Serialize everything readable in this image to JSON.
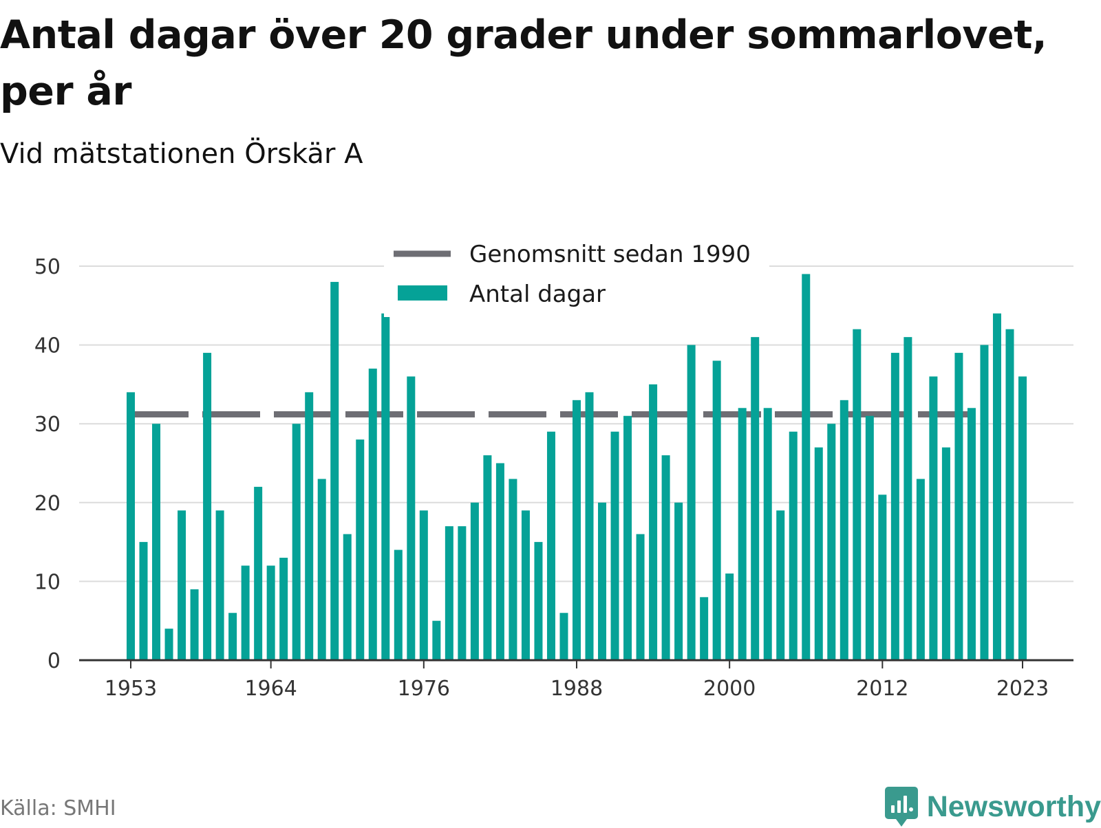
{
  "title": "Antal dagar över 20 grader under sommarlovet, per år",
  "subtitle": "Vid mätstationen Örskär A",
  "source": "Källa: SMHI",
  "brand": {
    "name": "Newsworthy",
    "icon": "newsworthy-logo-icon",
    "color": "#3a9a8e"
  },
  "colors": {
    "bars": "#05a297",
    "average_line": "#6e6e74",
    "grid": "#dcdcdc",
    "axis": "#333333"
  },
  "legend": {
    "items": [
      {
        "label": "Genomsnitt sedan 1990",
        "symbol": "line"
      },
      {
        "label": "Antal dagar",
        "symbol": "bar"
      }
    ]
  },
  "chart_data": {
    "type": "bar",
    "title": "Antal dagar över 20 grader under sommarlovet, per år",
    "subtitle": "Vid mätstationen Örskär A",
    "xlabel": "",
    "ylabel": "",
    "ylim": [
      0,
      50
    ],
    "yticks": [
      0,
      10,
      20,
      30,
      40,
      50
    ],
    "xticks": [
      "1953",
      "1964",
      "1976",
      "1988",
      "2000",
      "2012",
      "2023"
    ],
    "grid": true,
    "legend_position": "top-center",
    "categories": [
      1953,
      1954,
      1955,
      1956,
      1957,
      1958,
      1959,
      1960,
      1961,
      1962,
      1963,
      1964,
      1965,
      1966,
      1967,
      1968,
      1969,
      1970,
      1971,
      1972,
      1973,
      1974,
      1975,
      1976,
      1977,
      1978,
      1979,
      1980,
      1981,
      1982,
      1983,
      1984,
      1985,
      1986,
      1987,
      1988,
      1989,
      1990,
      1991,
      1992,
      1993,
      1994,
      1995,
      1996,
      1997,
      1998,
      1999,
      2000,
      2001,
      2002,
      2003,
      2004,
      2005,
      2006,
      2007,
      2008,
      2009,
      2010,
      2011,
      2012,
      2013,
      2014,
      2015,
      2016,
      2017,
      2018,
      2019,
      2020,
      2021,
      2022,
      2023
    ],
    "series": [
      {
        "name": "Antal dagar",
        "type": "bar",
        "values": [
          34,
          15,
          30,
          4,
          19,
          9,
          39,
          19,
          6,
          12,
          22,
          12,
          13,
          30,
          34,
          23,
          48,
          16,
          28,
          37,
          44,
          14,
          36,
          19,
          5,
          17,
          17,
          20,
          26,
          25,
          23,
          19,
          15,
          29,
          6,
          33,
          34,
          20,
          29,
          31,
          16,
          35,
          26,
          20,
          40,
          8,
          38,
          11,
          32,
          41,
          32,
          19,
          29,
          49,
          27,
          30,
          33,
          42,
          31,
          21,
          39,
          41,
          23,
          36,
          27,
          39,
          32,
          40,
          44,
          42,
          36
        ]
      },
      {
        "name": "Genomsnitt sedan 1990",
        "type": "line",
        "value": 31.2
      }
    ]
  }
}
